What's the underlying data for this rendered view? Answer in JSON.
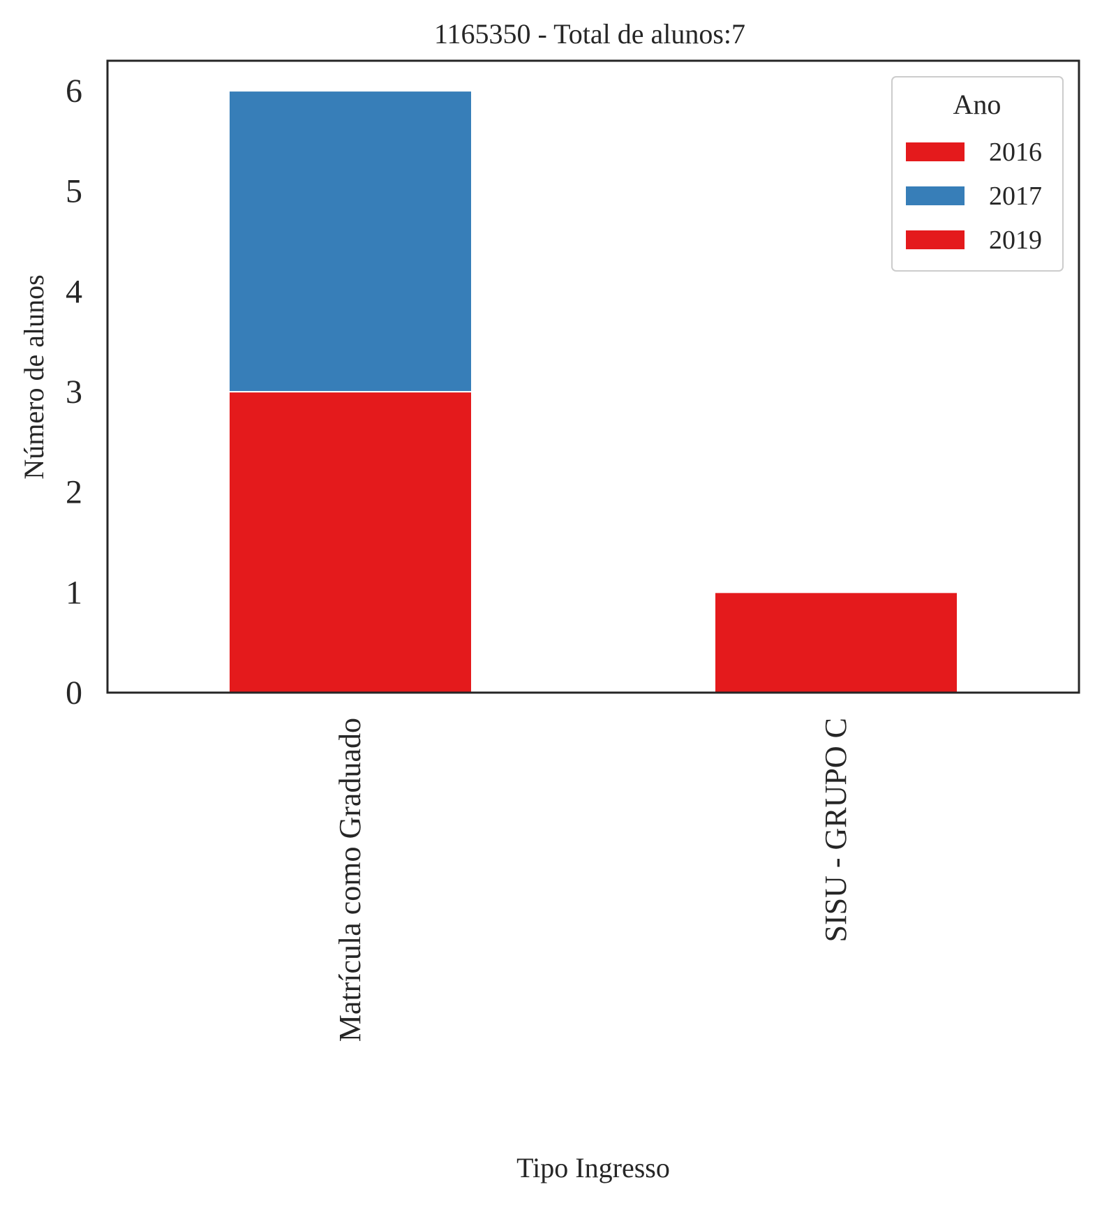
{
  "chart_data": {
    "type": "bar",
    "stacked": true,
    "title": "1165350 - Total de alunos:7",
    "xlabel": "Tipo Ingresso",
    "ylabel": "Número de alunos",
    "categories": [
      "Matrícula como Graduado",
      "SISU - GRUPO C"
    ],
    "series": [
      {
        "name": "2016",
        "color": "#e41a1c",
        "values": [
          3,
          0
        ]
      },
      {
        "name": "2017",
        "color": "#377eb8",
        "values": [
          3,
          0
        ]
      },
      {
        "name": "2019",
        "color": "#e41a1c",
        "values": [
          0,
          1
        ]
      }
    ],
    "ylim": [
      0,
      6.3
    ],
    "yticks": [
      0,
      1,
      2,
      3,
      4,
      5,
      6
    ],
    "grid": false,
    "legend": {
      "title": "Ano",
      "placement": "top-right"
    }
  }
}
